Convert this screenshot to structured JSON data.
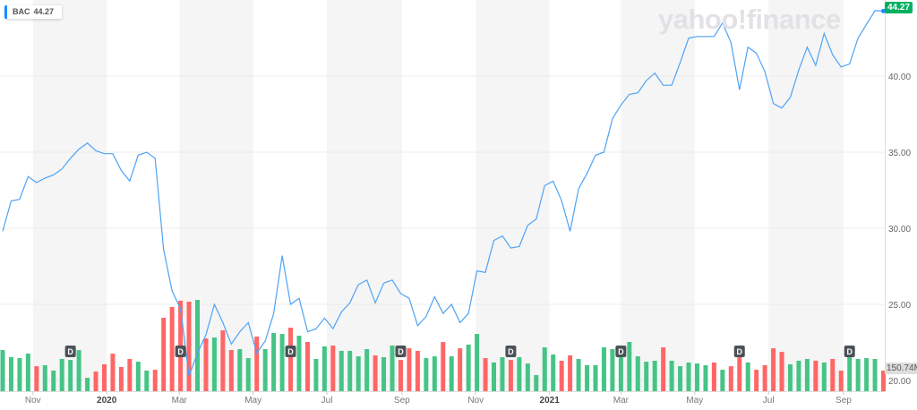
{
  "watermark": "yahoo!finance",
  "ticker_badge": {
    "symbol": "BAC",
    "price": "44.27"
  },
  "last_price_badge": "44.27",
  "last_volume_badge": "150.74M",
  "colors": {
    "line": "#4da3f5",
    "up": "#45c486",
    "down": "#ff6666",
    "band": "#f5f5f5",
    "price_badge": "#00b061"
  },
  "chart_data": {
    "type": "line",
    "title": "",
    "price_axis": {
      "ticks": [
        "20.00",
        "25.00",
        "30.00",
        "35.00",
        "40.00"
      ],
      "range": [
        20,
        45
      ]
    },
    "x_ticks": [
      {
        "label": "Nov",
        "date": "2019-11-01",
        "bold": false
      },
      {
        "label": "2020",
        "date": "2020-01-01",
        "bold": true
      },
      {
        "label": "Mar",
        "date": "2020-03-01",
        "bold": false
      },
      {
        "label": "May",
        "date": "2020-05-01",
        "bold": false
      },
      {
        "label": "Jul",
        "date": "2020-07-01",
        "bold": false
      },
      {
        "label": "Sep",
        "date": "2020-09-01",
        "bold": false
      },
      {
        "label": "Nov",
        "date": "2020-11-01",
        "bold": false
      },
      {
        "label": "2021",
        "date": "2021-01-01",
        "bold": true
      },
      {
        "label": "Mar",
        "date": "2021-03-01",
        "bold": false
      },
      {
        "label": "May",
        "date": "2021-05-01",
        "bold": false
      },
      {
        "label": "Jul",
        "date": "2021-07-01",
        "bold": false
      },
      {
        "label": "Sep",
        "date": "2021-09-01",
        "bold": false
      }
    ],
    "grid": true,
    "dates": [
      "2019-10-07",
      "2019-10-14",
      "2019-10-21",
      "2019-10-28",
      "2019-11-04",
      "2019-11-11",
      "2019-11-18",
      "2019-11-25",
      "2019-12-02",
      "2019-12-09",
      "2019-12-16",
      "2019-12-23",
      "2019-12-30",
      "2020-01-06",
      "2020-01-13",
      "2020-01-20",
      "2020-01-27",
      "2020-02-03",
      "2020-02-10",
      "2020-02-17",
      "2020-02-24",
      "2020-03-02",
      "2020-03-09",
      "2020-03-16",
      "2020-03-23",
      "2020-03-30",
      "2020-04-06",
      "2020-04-13",
      "2020-04-20",
      "2020-04-27",
      "2020-05-04",
      "2020-05-11",
      "2020-05-18",
      "2020-05-25",
      "2020-06-01",
      "2020-06-08",
      "2020-06-15",
      "2020-06-22",
      "2020-06-29",
      "2020-07-06",
      "2020-07-13",
      "2020-07-20",
      "2020-07-27",
      "2020-08-03",
      "2020-08-10",
      "2020-08-17",
      "2020-08-24",
      "2020-08-31",
      "2020-09-07",
      "2020-09-14",
      "2020-09-21",
      "2020-09-28",
      "2020-10-05",
      "2020-10-12",
      "2020-10-19",
      "2020-10-26",
      "2020-11-02",
      "2020-11-09",
      "2020-11-16",
      "2020-11-23",
      "2020-11-30",
      "2020-12-07",
      "2020-12-14",
      "2020-12-21",
      "2020-12-28",
      "2021-01-04",
      "2021-01-11",
      "2021-01-18",
      "2021-01-25",
      "2021-02-01",
      "2021-02-08",
      "2021-02-15",
      "2021-02-22",
      "2021-03-01",
      "2021-03-08",
      "2021-03-15",
      "2021-03-22",
      "2021-03-29",
      "2021-04-05",
      "2021-04-12",
      "2021-04-19",
      "2021-04-26",
      "2021-05-03",
      "2021-05-10",
      "2021-05-17",
      "2021-05-24",
      "2021-05-31",
      "2021-06-07",
      "2021-06-14",
      "2021-06-21",
      "2021-06-28",
      "2021-07-05",
      "2021-07-12",
      "2021-07-19",
      "2021-07-26",
      "2021-08-02",
      "2021-08-09",
      "2021-08-16",
      "2021-08-23",
      "2021-08-30",
      "2021-09-06",
      "2021-09-13",
      "2021-09-20",
      "2021-09-27",
      "2021-10-04"
    ],
    "close": [
      29.8,
      31.8,
      31.9,
      33.4,
      33.0,
      33.3,
      33.5,
      33.9,
      34.6,
      35.2,
      35.6,
      35.1,
      34.9,
      34.9,
      33.8,
      33.1,
      34.8,
      35.0,
      34.6,
      28.6,
      25.9,
      24.7,
      20.3,
      21.8,
      23.0,
      25.0,
      23.8,
      22.4,
      23.2,
      23.8,
      21.8,
      22.6,
      24.4,
      28.2,
      25.0,
      25.4,
      23.2,
      23.4,
      24.1,
      23.4,
      24.5,
      25.1,
      26.3,
      26.6,
      25.1,
      26.4,
      26.6,
      25.7,
      25.4,
      23.6,
      24.2,
      25.5,
      24.4,
      25.0,
      23.8,
      24.4,
      27.2,
      27.1,
      29.2,
      29.5,
      28.7,
      28.8,
      30.2,
      30.6,
      32.8,
      33.1,
      31.8,
      29.8,
      32.6,
      33.6,
      34.8,
      35.0,
      37.2,
      38.1,
      38.8,
      38.9,
      39.7,
      40.2,
      39.4,
      39.4,
      40.9,
      42.5,
      42.6,
      42.6,
      42.6,
      43.5,
      42.2,
      39.1,
      41.9,
      41.5,
      40.3,
      38.2,
      37.9,
      38.6,
      40.4,
      41.9,
      40.7,
      42.8,
      41.4,
      40.6,
      40.8,
      42.5,
      43.4,
      44.3,
      44.27
    ],
    "volume_millions": [
      301,
      249,
      242,
      275,
      183,
      190,
      151,
      236,
      229,
      301,
      98,
      144,
      197,
      275,
      177,
      236,
      216,
      151,
      157,
      537,
      616,
      662,
      655,
      668,
      386,
      393,
      445,
      301,
      308,
      242,
      400,
      308,
      426,
      419,
      465,
      406,
      360,
      236,
      328,
      334,
      295,
      295,
      255,
      308,
      262,
      249,
      334,
      229,
      314,
      295,
      242,
      255,
      360,
      255,
      314,
      341,
      419,
      242,
      210,
      249,
      229,
      249,
      203,
      118,
      321,
      269,
      223,
      262,
      236,
      190,
      190,
      321,
      308,
      269,
      360,
      255,
      216,
      223,
      321,
      223,
      183,
      210,
      203,
      190,
      210,
      157,
      183,
      321,
      210,
      157,
      190,
      314,
      288,
      197,
      223,
      236,
      223,
      210,
      236,
      151,
      275,
      236,
      242,
      236,
      150.74
    ],
    "volume_direction": [
      "up",
      "up",
      "up",
      "up",
      "down",
      "up",
      "up",
      "up",
      "up",
      "up",
      "up",
      "down",
      "down",
      "down",
      "down",
      "down",
      "up",
      "up",
      "down",
      "down",
      "down",
      "down",
      "down",
      "up",
      "down",
      "up",
      "down",
      "down",
      "up",
      "up",
      "down",
      "up",
      "up",
      "up",
      "down",
      "up",
      "down",
      "up",
      "up",
      "down",
      "up",
      "up",
      "up",
      "up",
      "down",
      "up",
      "up",
      "down",
      "down",
      "down",
      "up",
      "up",
      "down",
      "up",
      "down",
      "up",
      "up",
      "down",
      "up",
      "up",
      "down",
      "up",
      "up",
      "up",
      "up",
      "up",
      "down",
      "down",
      "up",
      "up",
      "up",
      "up",
      "up",
      "up",
      "up",
      "up",
      "up",
      "up",
      "down",
      "up",
      "up",
      "up",
      "up",
      "up",
      "down",
      "up",
      "down",
      "down",
      "up",
      "down",
      "down",
      "down",
      "down",
      "up",
      "up",
      "up",
      "down",
      "up",
      "down",
      "down",
      "up",
      "up",
      "up",
      "up",
      "down"
    ],
    "dividend_marker": "D",
    "dividend_dates": [
      "2019-12-02",
      "2020-03-02",
      "2020-06-01",
      "2020-08-31",
      "2020-11-30",
      "2021-03-01",
      "2021-06-07",
      "2021-09-06"
    ]
  }
}
